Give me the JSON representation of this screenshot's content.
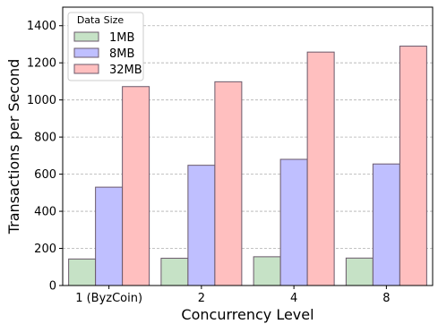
{
  "chart_data": {
    "type": "bar",
    "categories": [
      "1 (ByzCoin)",
      "2",
      "4",
      "8"
    ],
    "series": [
      {
        "name": "1MB",
        "values": [
          143,
          147,
          155,
          148
        ],
        "color": "#c6e2c6"
      },
      {
        "name": "8MB",
        "values": [
          530,
          648,
          680,
          655
        ],
        "color": "#bfbfff"
      },
      {
        "name": "32MB",
        "values": [
          1072,
          1098,
          1258,
          1290
        ],
        "color": "#ffbfbf"
      }
    ],
    "xlabel": "Concurrency Level",
    "ylabel": "Transactions per Second",
    "ylim": [
      0,
      1500
    ],
    "yticks": [
      0,
      200,
      400,
      600,
      800,
      1000,
      1200,
      1400
    ],
    "grid": true,
    "legend_title": "Data Size",
    "legend_position": "top-left",
    "edge_color": "#6b5a6b"
  }
}
